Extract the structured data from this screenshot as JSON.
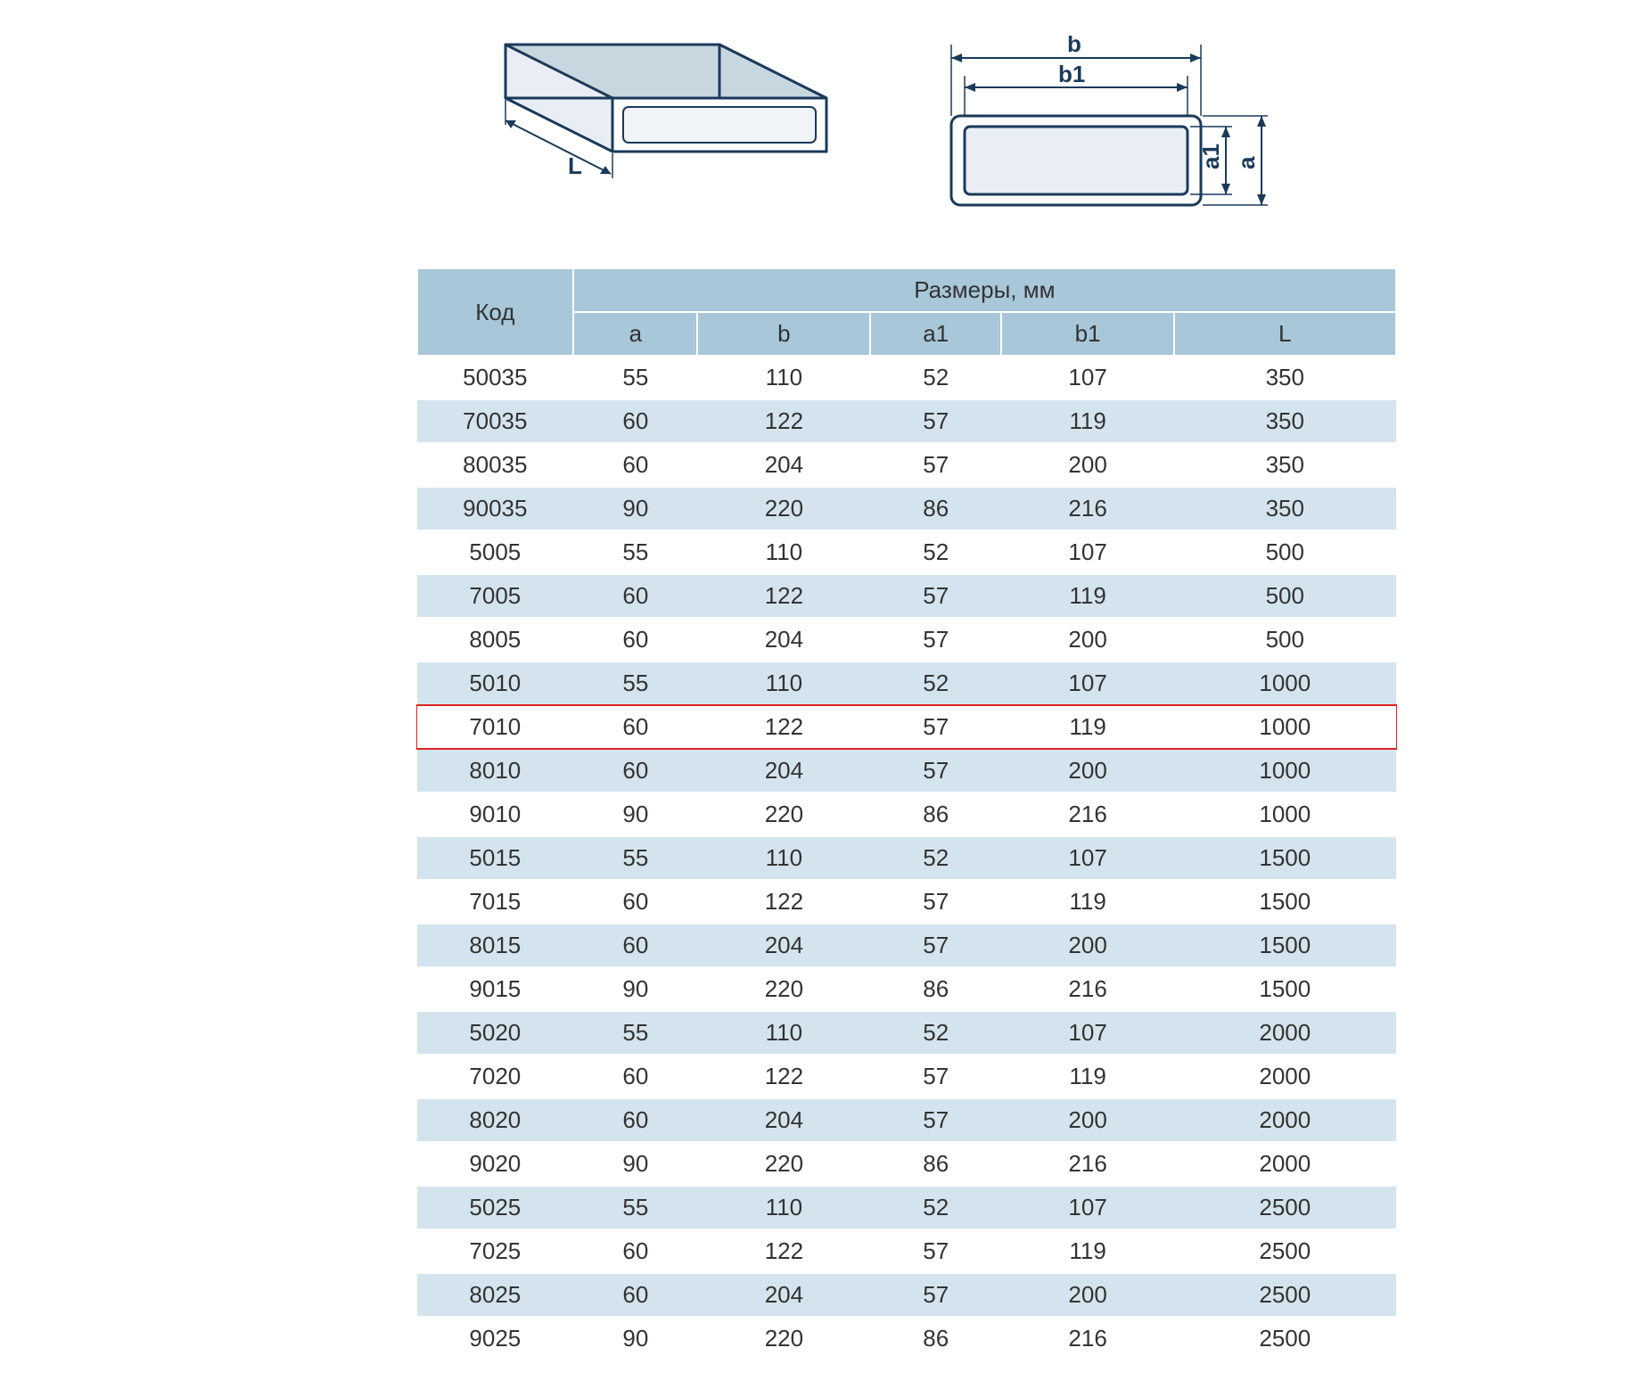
{
  "diagram": {
    "label_L": "L",
    "label_b": "b",
    "label_b1": "b1",
    "label_a": "a",
    "label_a1": "a1",
    "stroke": "#1a3a5a",
    "fill_light": "#e8eef3",
    "fill_mid": "#c8d6e0"
  },
  "table": {
    "header_code": "Код",
    "header_dims": "Размеры, мм",
    "columns": [
      "a",
      "b",
      "a1",
      "b1",
      "L"
    ],
    "header_bg": "#a8c7d8",
    "stripe_bg": "#d4e4ee",
    "highlight_border": "#d22222",
    "highlighted_index": 8,
    "rows": [
      {
        "code": "50035",
        "a": "55",
        "b": "110",
        "a1": "52",
        "b1": "107",
        "L": "350"
      },
      {
        "code": "70035",
        "a": "60",
        "b": "122",
        "a1": "57",
        "b1": "119",
        "L": "350"
      },
      {
        "code": "80035",
        "a": "60",
        "b": "204",
        "a1": "57",
        "b1": "200",
        "L": "350"
      },
      {
        "code": "90035",
        "a": "90",
        "b": "220",
        "a1": "86",
        "b1": "216",
        "L": "350"
      },
      {
        "code": "5005",
        "a": "55",
        "b": "110",
        "a1": "52",
        "b1": "107",
        "L": "500"
      },
      {
        "code": "7005",
        "a": "60",
        "b": "122",
        "a1": "57",
        "b1": "119",
        "L": "500"
      },
      {
        "code": "8005",
        "a": "60",
        "b": "204",
        "a1": "57",
        "b1": "200",
        "L": "500"
      },
      {
        "code": "5010",
        "a": "55",
        "b": "110",
        "a1": "52",
        "b1": "107",
        "L": "1000"
      },
      {
        "code": "7010",
        "a": "60",
        "b": "122",
        "a1": "57",
        "b1": "119",
        "L": "1000"
      },
      {
        "code": "8010",
        "a": "60",
        "b": "204",
        "a1": "57",
        "b1": "200",
        "L": "1000"
      },
      {
        "code": "9010",
        "a": "90",
        "b": "220",
        "a1": "86",
        "b1": "216",
        "L": "1000"
      },
      {
        "code": "5015",
        "a": "55",
        "b": "110",
        "a1": "52",
        "b1": "107",
        "L": "1500"
      },
      {
        "code": "7015",
        "a": "60",
        "b": "122",
        "a1": "57",
        "b1": "119",
        "L": "1500"
      },
      {
        "code": "8015",
        "a": "60",
        "b": "204",
        "a1": "57",
        "b1": "200",
        "L": "1500"
      },
      {
        "code": "9015",
        "a": "90",
        "b": "220",
        "a1": "86",
        "b1": "216",
        "L": "1500"
      },
      {
        "code": "5020",
        "a": "55",
        "b": "110",
        "a1": "52",
        "b1": "107",
        "L": "2000"
      },
      {
        "code": "7020",
        "a": "60",
        "b": "122",
        "a1": "57",
        "b1": "119",
        "L": "2000"
      },
      {
        "code": "8020",
        "a": "60",
        "b": "204",
        "a1": "57",
        "b1": "200",
        "L": "2000"
      },
      {
        "code": "9020",
        "a": "90",
        "b": "220",
        "a1": "86",
        "b1": "216",
        "L": "2000"
      },
      {
        "code": "5025",
        "a": "55",
        "b": "110",
        "a1": "52",
        "b1": "107",
        "L": "2500"
      },
      {
        "code": "7025",
        "a": "60",
        "b": "122",
        "a1": "57",
        "b1": "119",
        "L": "2500"
      },
      {
        "code": "8025",
        "a": "60",
        "b": "204",
        "a1": "57",
        "b1": "200",
        "L": "2500"
      },
      {
        "code": "9025",
        "a": "90",
        "b": "220",
        "a1": "86",
        "b1": "216",
        "L": "2500"
      }
    ]
  }
}
